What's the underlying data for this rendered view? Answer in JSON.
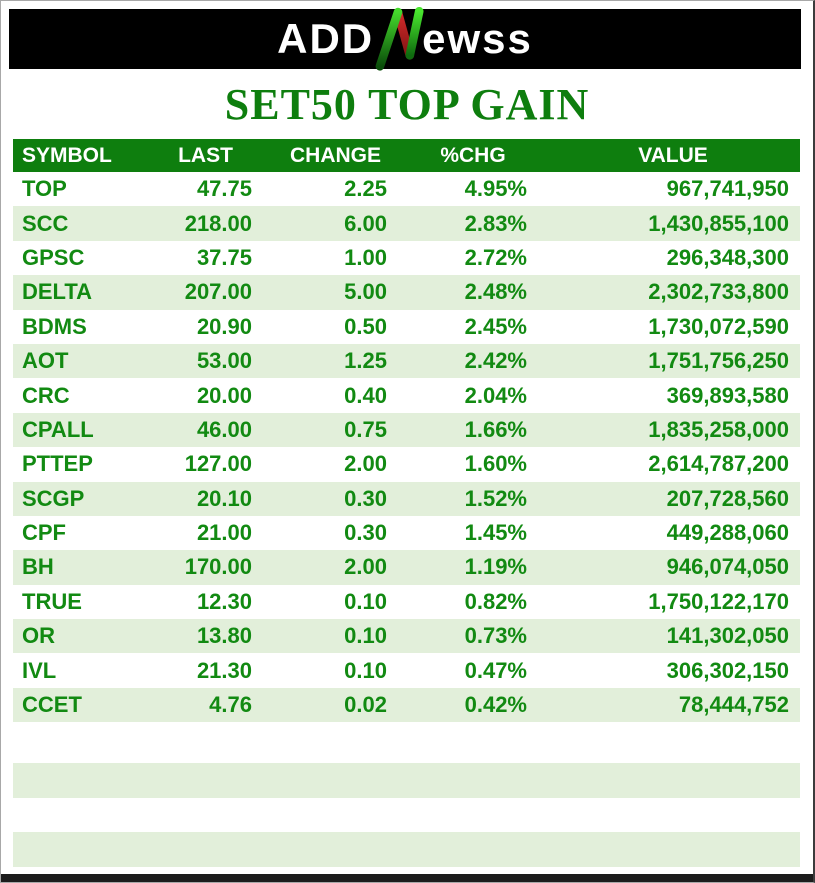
{
  "logo": {
    "prefix": "ADD",
    "suffix": "ewss",
    "bar_color": "#000000",
    "text_color": "#ffffff",
    "n_icon_green": "#2eb51f",
    "n_icon_red": "#c22222"
  },
  "title": {
    "text": "SET50 TOP GAIN",
    "color": "#0e7e0e"
  },
  "colors": {
    "header_green": "#0e7e0e",
    "header_text": "#ffffff",
    "data_text_green": "#128a12",
    "row_alt_bg": "#e2efda",
    "row_bg": "#ffffff",
    "footer_bar": "#1c1c1c"
  },
  "table": {
    "headers": [
      "SYMBOL",
      "LAST",
      "CHANGE",
      "%CHG",
      "VALUE"
    ],
    "rows": [
      {
        "symbol": "TOP",
        "last": "47.75",
        "change": "2.25",
        "pct_chg": "4.95%",
        "value": "967,741,950"
      },
      {
        "symbol": "SCC",
        "last": "218.00",
        "change": "6.00",
        "pct_chg": "2.83%",
        "value": "1,430,855,100"
      },
      {
        "symbol": "GPSC",
        "last": "37.75",
        "change": "1.00",
        "pct_chg": "2.72%",
        "value": "296,348,300"
      },
      {
        "symbol": "DELTA",
        "last": "207.00",
        "change": "5.00",
        "pct_chg": "2.48%",
        "value": "2,302,733,800"
      },
      {
        "symbol": "BDMS",
        "last": "20.90",
        "change": "0.50",
        "pct_chg": "2.45%",
        "value": "1,730,072,590"
      },
      {
        "symbol": "AOT",
        "last": "53.00",
        "change": "1.25",
        "pct_chg": "2.42%",
        "value": "1,751,756,250"
      },
      {
        "symbol": "CRC",
        "last": "20.00",
        "change": "0.40",
        "pct_chg": "2.04%",
        "value": "369,893,580"
      },
      {
        "symbol": "CPALL",
        "last": "46.00",
        "change": "0.75",
        "pct_chg": "1.66%",
        "value": "1,835,258,000"
      },
      {
        "symbol": "PTTEP",
        "last": "127.00",
        "change": "2.00",
        "pct_chg": "1.60%",
        "value": "2,614,787,200"
      },
      {
        "symbol": "SCGP",
        "last": "20.10",
        "change": "0.30",
        "pct_chg": "1.52%",
        "value": "207,728,560"
      },
      {
        "symbol": "CPF",
        "last": "21.00",
        "change": "0.30",
        "pct_chg": "1.45%",
        "value": "449,288,060"
      },
      {
        "symbol": "BH",
        "last": "170.00",
        "change": "2.00",
        "pct_chg": "1.19%",
        "value": "946,074,050"
      },
      {
        "symbol": "TRUE",
        "last": "12.30",
        "change": "0.10",
        "pct_chg": "0.82%",
        "value": "1,750,122,170"
      },
      {
        "symbol": "OR",
        "last": "13.80",
        "change": "0.10",
        "pct_chg": "0.73%",
        "value": "141,302,050"
      },
      {
        "symbol": "IVL",
        "last": "21.30",
        "change": "0.10",
        "pct_chg": "0.47%",
        "value": "306,302,150"
      },
      {
        "symbol": "CCET",
        "last": "4.76",
        "change": "0.02",
        "pct_chg": "0.42%",
        "value": "78,444,752"
      }
    ]
  },
  "chart_data": {
    "type": "table",
    "title": "SET50 TOP GAIN",
    "columns": [
      "SYMBOL",
      "LAST",
      "CHANGE",
      "%CHG",
      "VALUE"
    ],
    "rows": [
      [
        "TOP",
        47.75,
        2.25,
        "4.95%",
        967741950
      ],
      [
        "SCC",
        218.0,
        6.0,
        "2.83%",
        1430855100
      ],
      [
        "GPSC",
        37.75,
        1.0,
        "2.72%",
        296348300
      ],
      [
        "DELTA",
        207.0,
        5.0,
        "2.48%",
        2302733800
      ],
      [
        "BDMS",
        20.9,
        0.5,
        "2.45%",
        1730072590
      ],
      [
        "AOT",
        53.0,
        1.25,
        "2.42%",
        1751756250
      ],
      [
        "CRC",
        20.0,
        0.4,
        "2.04%",
        369893580
      ],
      [
        "CPALL",
        46.0,
        0.75,
        "1.66%",
        1835258000
      ],
      [
        "PTTEP",
        127.0,
        2.0,
        "1.60%",
        2614787200
      ],
      [
        "SCGP",
        20.1,
        0.3,
        "1.52%",
        207728560
      ],
      [
        "CPF",
        21.0,
        0.3,
        "1.45%",
        449288060
      ],
      [
        "BH",
        170.0,
        2.0,
        "1.19%",
        946074050
      ],
      [
        "TRUE",
        12.3,
        0.1,
        "0.82%",
        1750122170
      ],
      [
        "OR",
        13.8,
        0.1,
        "0.73%",
        141302050
      ],
      [
        "IVL",
        21.3,
        0.1,
        "0.47%",
        306302150
      ],
      [
        "CCET",
        4.76,
        0.02,
        "0.42%",
        78444752
      ]
    ]
  }
}
